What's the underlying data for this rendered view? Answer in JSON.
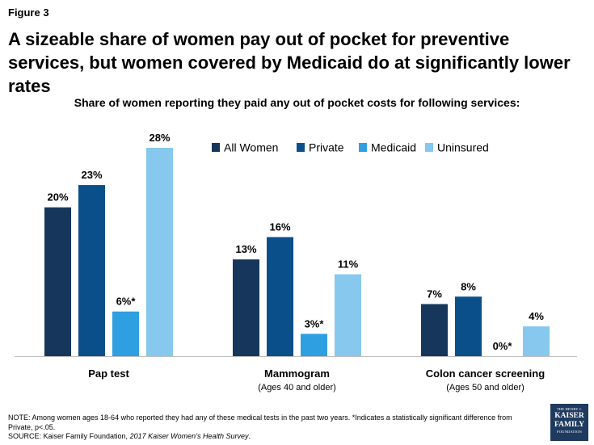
{
  "figure_label": "Figure 3",
  "title": "A sizeable share of women pay out of pocket for preventive services, but women covered by Medicaid do at significantly lower rates",
  "chart_data": {
    "type": "bar",
    "title": "Share of women reporting they paid any out of pocket costs for following services:",
    "categories": [
      "Pap test",
      "Mammogram",
      "Colon cancer screening"
    ],
    "category_sublabels": [
      "",
      "(Ages 40 and older)",
      "(Ages 50 and older)"
    ],
    "series": [
      {
        "name": "All Women",
        "color": "#16365c",
        "values": [
          20,
          13,
          7
        ],
        "labels": [
          "20%",
          "13%",
          "7%"
        ]
      },
      {
        "name": "Private",
        "color": "#0b4f8a",
        "values": [
          23,
          16,
          8
        ],
        "labels": [
          "23%",
          "16%",
          "8%"
        ]
      },
      {
        "name": "Medicaid",
        "color": "#2e9fe0",
        "values": [
          6,
          3,
          0
        ],
        "labels": [
          "6%*",
          "3%*",
          "0%*"
        ]
      },
      {
        "name": "Uninsured",
        "color": "#86c8ee",
        "values": [
          28,
          11,
          4
        ],
        "labels": [
          "28%",
          "11%",
          "4%"
        ]
      }
    ],
    "ylim": [
      0,
      28
    ],
    "legend_position": "top-right",
    "grid": false,
    "axis_color": "#bfbfbf"
  },
  "note": "NOTE:  Among women ages 18-64 who reported they had any of these medical tests in the past two years. *Indicates a statistically significant difference from Private, p<.05.",
  "source": {
    "prefix": "SOURCE:  Kaiser Family Foundation, ",
    "italic": "2017 Kaiser Women’s Health Survey",
    "suffix": "."
  },
  "logo": {
    "line1": "THE HENRY J.",
    "line2": "KAISER",
    "line3": "FAMILY",
    "line4": "FOUNDATION",
    "color": "#1f3a5f"
  }
}
